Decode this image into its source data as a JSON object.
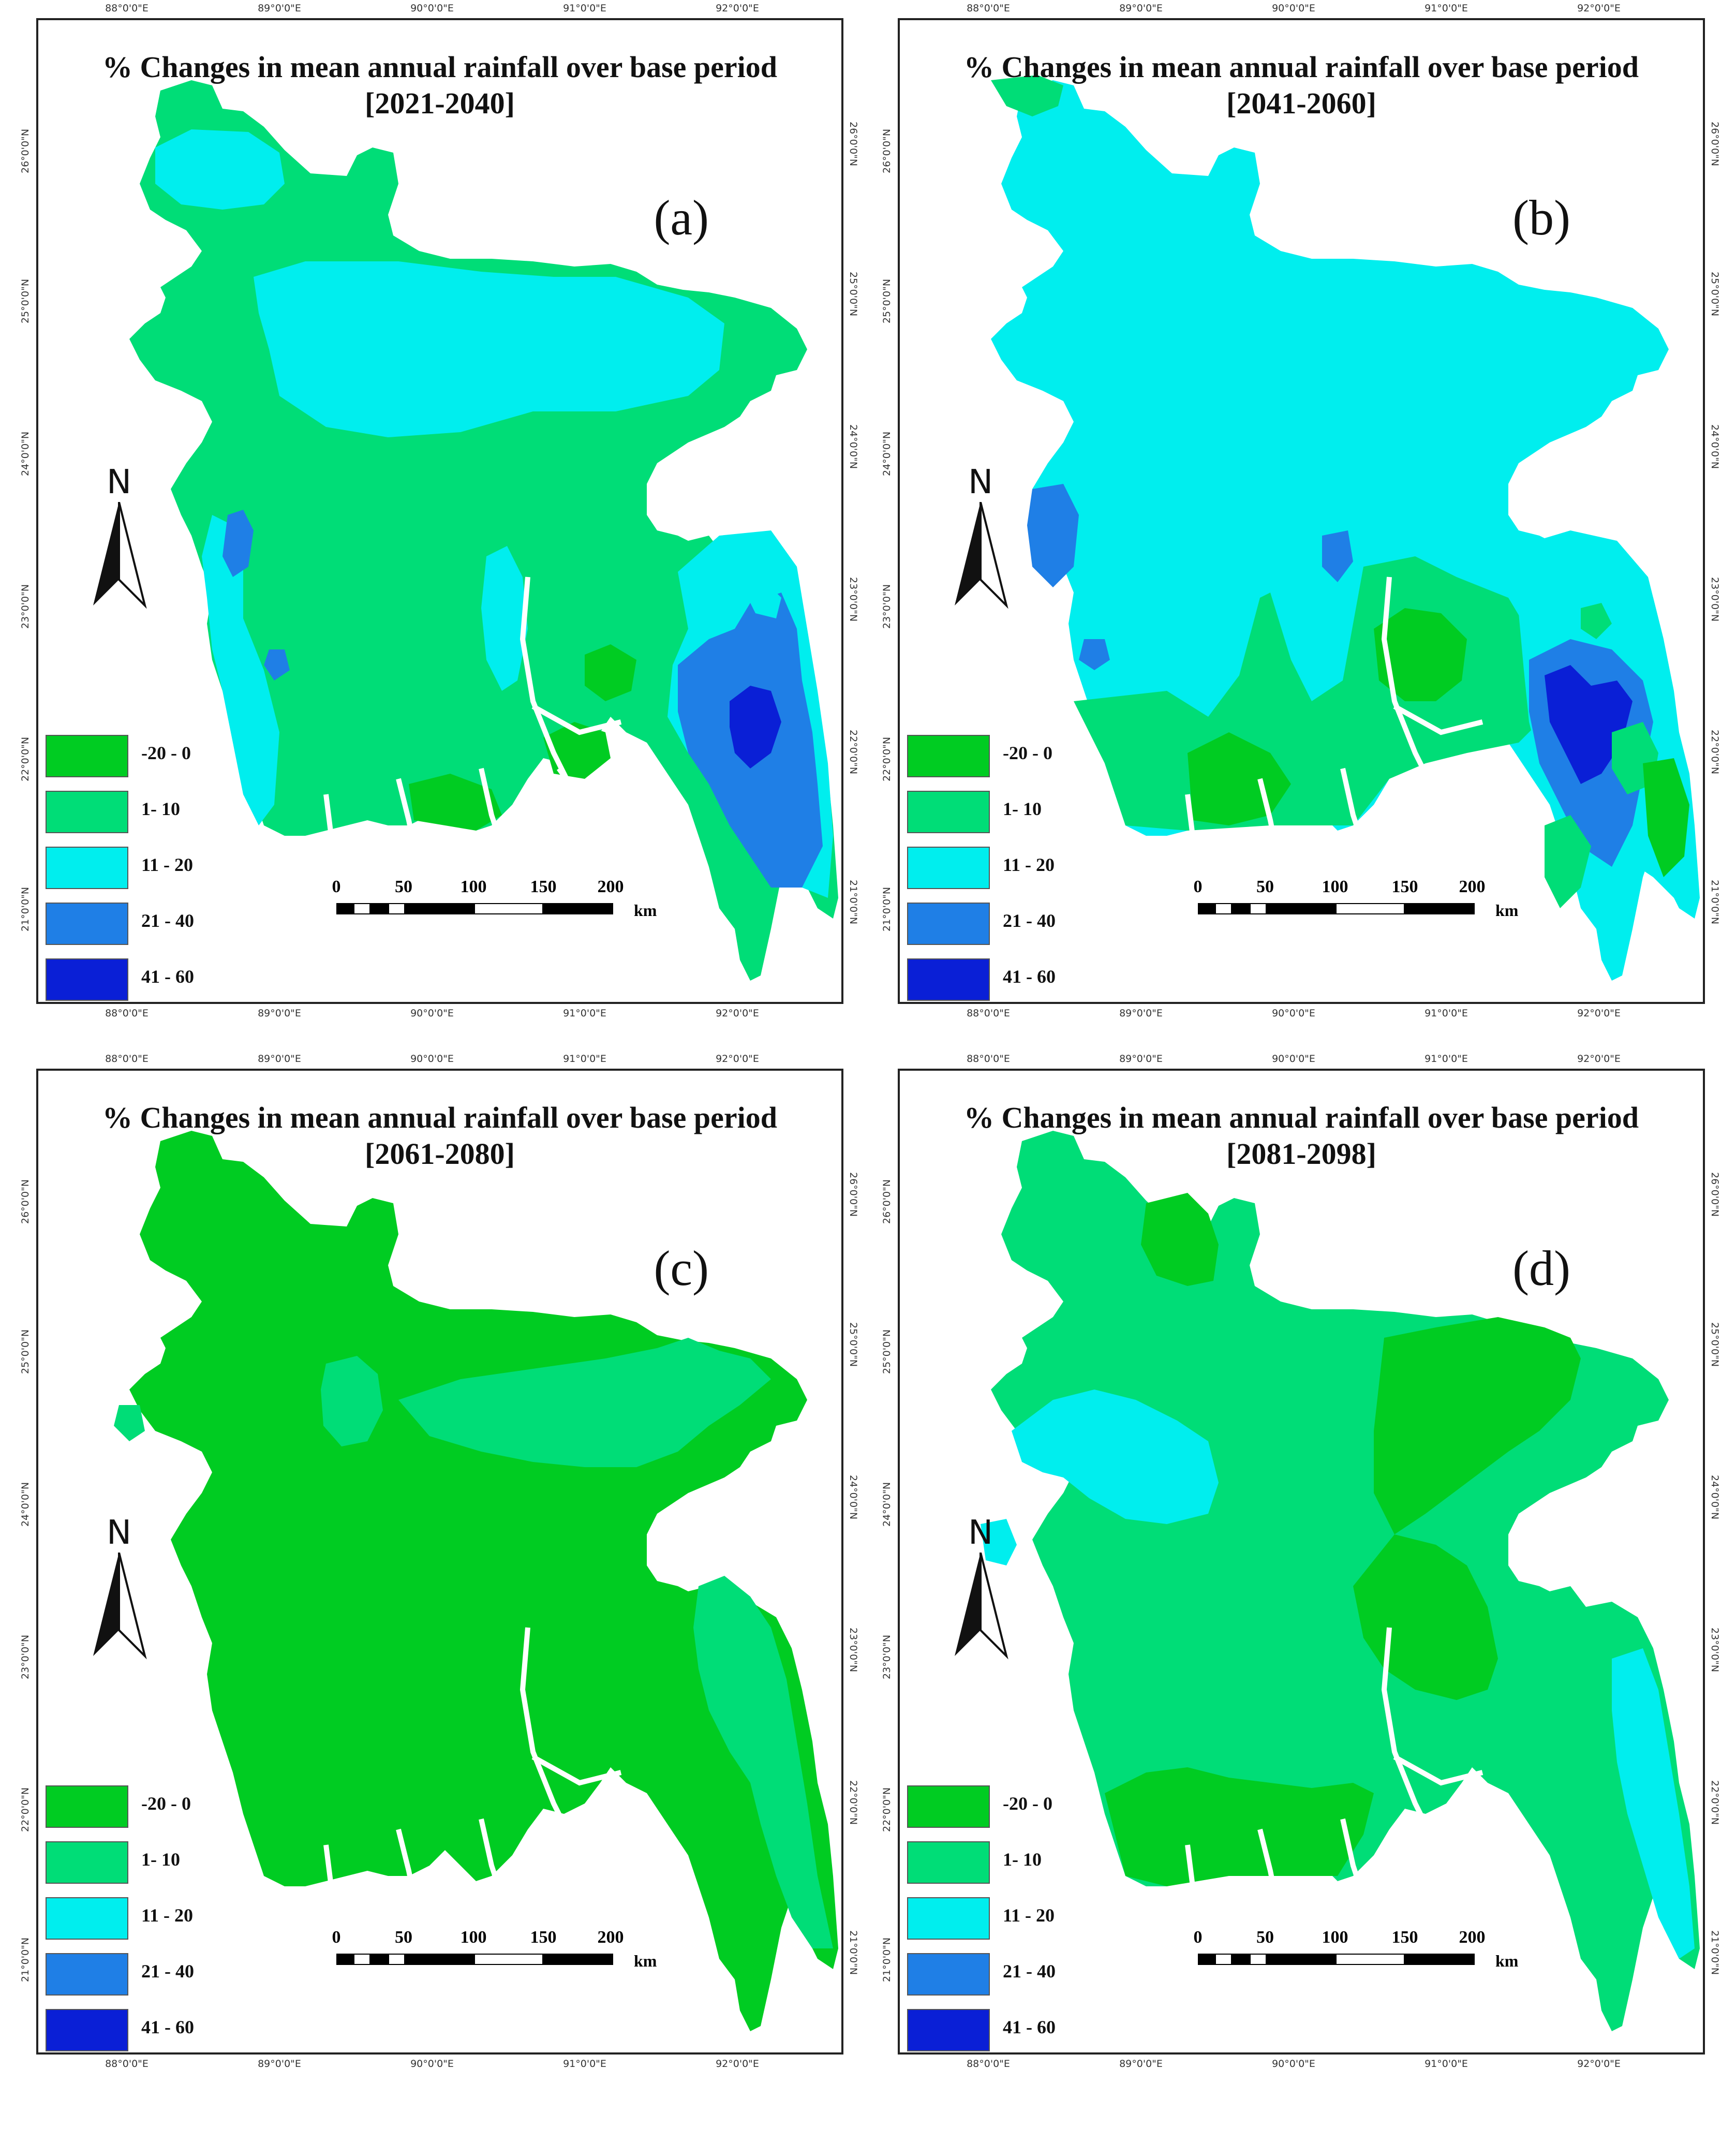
{
  "colors": {
    "c_neg20_0": "#00cc22",
    "c_1_10": "#00dd77",
    "c_11_20": "#00eeee",
    "c_21_40": "#1f7fe6",
    "c_41_60": "#0a1fd6"
  },
  "legend": {
    "items": [
      {
        "label": "-20 - 0",
        "color": "#00cc22"
      },
      {
        "label": "1- 10",
        "color": "#00dd77"
      },
      {
        "label": "11 - 20",
        "color": "#00eeee"
      },
      {
        "label": "21 - 40",
        "color": "#1f7fe6"
      },
      {
        "label": "41 - 60",
        "color": "#0a1fd6"
      }
    ]
  },
  "axes": {
    "lon_ticks": [
      "88°0'0\"E",
      "89°0'0\"E",
      "90°0'0\"E",
      "91°0'0\"E",
      "92°0'0\"E"
    ],
    "lat_ticks": [
      "26°0'0\"N",
      "25°0'0\"N",
      "24°0'0\"N",
      "23°0'0\"N",
      "22°0'0\"N",
      "21°0'0\"N"
    ]
  },
  "scale": {
    "numbers": [
      "0",
      "50",
      "100",
      "150",
      "200"
    ],
    "unit": "km"
  },
  "north_label": "N",
  "panels": [
    {
      "title": "% Changes in mean annual rainfall over base period",
      "period": "[2021-2040]",
      "label": "(a)",
      "base_class": "1- 10",
      "zones": [
        "11 - 20",
        "21 - 40",
        "41 - 60",
        "-20 - 0"
      ]
    },
    {
      "title": "% Changes in mean annual rainfall over base period",
      "period": "[2041-2060]",
      "label": "(b)",
      "base_class": "11 - 20",
      "zones": [
        "1- 10",
        "-20 - 0",
        "21 - 40",
        "41 - 60"
      ]
    },
    {
      "title": "% Changes in mean annual rainfall over base period",
      "period": "[2061-2080]",
      "label": "(c)",
      "base_class": "-20 - 0",
      "zones": [
        "1- 10"
      ]
    },
    {
      "title": "% Changes in mean annual rainfall over base period",
      "period": "[2081-2098]",
      "label": "(d)",
      "base_class": "1- 10",
      "zones": [
        "-20 - 0",
        "11 - 20"
      ]
    }
  ]
}
